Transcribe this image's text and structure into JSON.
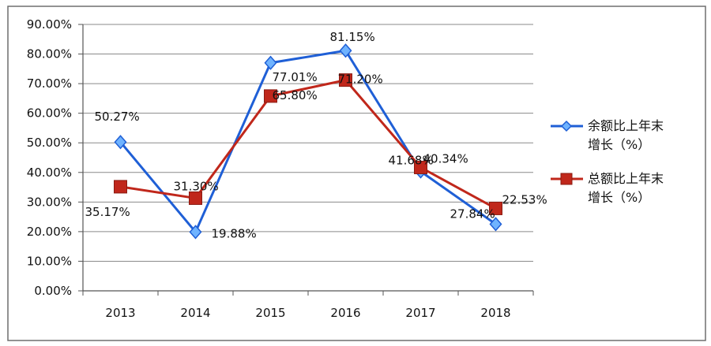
{
  "chart_data": {
    "type": "line",
    "categories": [
      "2013",
      "2014",
      "2015",
      "2016",
      "2017",
      "2018"
    ],
    "ylim": [
      0,
      90
    ],
    "ytick_labels": [
      "0.00%",
      "10.00%",
      "20.00%",
      "30.00%",
      "40.00%",
      "50.00%",
      "60.00%",
      "70.00%",
      "80.00%",
      "90.00%"
    ],
    "grid": "horizontal",
    "legend_position": "right",
    "series": [
      {
        "name": "余额比上年末增长（%）",
        "legend_lines": [
          "余额比上年末",
          "增长（%）"
        ],
        "color": "#1f5fd6",
        "marker": "diamond",
        "values": [
          50.27,
          19.88,
          77.01,
          81.15,
          40.34,
          22.53
        ],
        "labels": [
          "50.27%",
          "19.88%",
          "77.01%",
          "81.15%",
          "40.34%",
          "22.53%"
        ]
      },
      {
        "name": "总额比上年末增长（%）",
        "legend_lines": [
          "总额比上年末",
          "增长（%）"
        ],
        "color": "#c0271b",
        "marker": "square",
        "values": [
          35.17,
          31.3,
          65.8,
          71.2,
          41.68,
          27.84
        ],
        "labels": [
          "35.17%",
          "31.30%",
          "65.80%",
          "71.20%",
          "41.68%",
          "27.84%"
        ]
      }
    ]
  }
}
